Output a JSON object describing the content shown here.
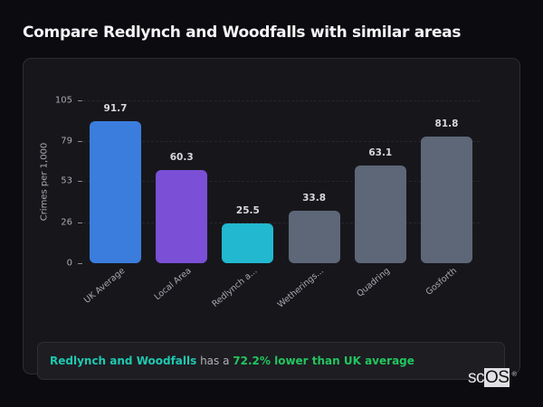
{
  "header": {
    "title": "Compare Redlynch and Woodfalls with similar areas"
  },
  "chart_data": {
    "type": "bar",
    "title": "Compare Redlynch and Woodfalls with similar areas",
    "xlabel": "",
    "ylabel": "Crimes per 1,000",
    "ylim": [
      0,
      105
    ],
    "yticks": [
      "0",
      "26",
      "53",
      "79",
      "105"
    ],
    "grid": true,
    "legend": "none",
    "categories": [
      "UK Average",
      "Local Area",
      "Redlynch a...",
      "Wetherings...",
      "Quadring",
      "Gosforth"
    ],
    "values": [
      91.7,
      60.3,
      25.5,
      33.8,
      63.1,
      81.8
    ],
    "value_labels": [
      "91.7",
      "60.3",
      "25.5",
      "33.8",
      "63.1",
      "81.8"
    ],
    "colors": [
      "#3b7ddd",
      "#7b4fd6",
      "#22b8cf",
      "#5d6778",
      "#5d6778",
      "#5d6778"
    ]
  },
  "summary": {
    "place": "Redlynch and Woodfalls",
    "connector": " has a ",
    "stat": "72.2% lower than UK average"
  },
  "watermark": {
    "prefix": "sc",
    "highlight": "OS",
    "mark": "®"
  }
}
